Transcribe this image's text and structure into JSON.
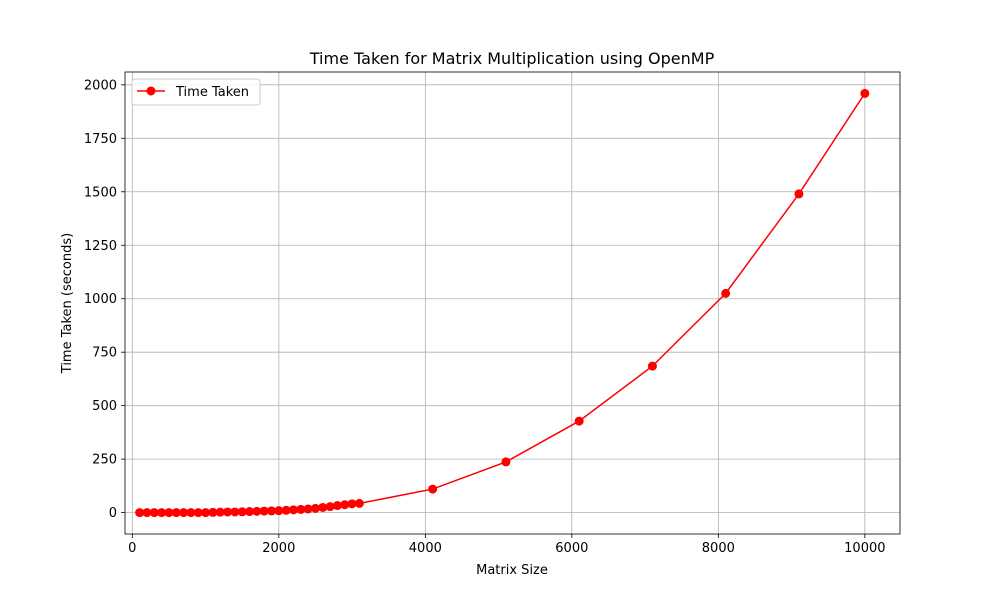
{
  "chart_data": {
    "type": "line",
    "title": "Time Taken for Matrix Multiplication using OpenMP",
    "xlabel": "Matrix Size",
    "ylabel": "Time Taken (seconds)",
    "xlim": [
      -100,
      10480
    ],
    "ylim": [
      -100,
      2060
    ],
    "xticks": [
      0,
      2000,
      4000,
      6000,
      8000,
      10000
    ],
    "yticks": [
      0,
      250,
      500,
      750,
      1000,
      1250,
      1500,
      1750,
      2000
    ],
    "grid": true,
    "legend_position": "top-left",
    "series": [
      {
        "name": "Time Taken",
        "color": "#ff0000",
        "marker": "circle",
        "x": [
          100,
          200,
          300,
          400,
          500,
          600,
          700,
          800,
          900,
          1000,
          1100,
          1200,
          1300,
          1400,
          1500,
          1600,
          1700,
          1800,
          1900,
          2000,
          2100,
          2200,
          2300,
          2400,
          2500,
          2600,
          2700,
          2800,
          2900,
          3000,
          3100,
          4100,
          5100,
          6100,
          7100,
          8100,
          9100,
          10000
        ],
        "y": [
          0,
          0,
          0,
          0,
          0,
          0,
          0,
          0,
          0,
          0,
          1,
          2,
          3,
          3,
          4,
          5,
          6,
          7,
          8,
          9,
          11,
          13,
          15,
          17,
          20,
          24,
          28,
          33,
          37,
          41,
          43,
          110,
          237,
          428,
          685,
          1025,
          1490,
          1960
        ]
      }
    ]
  }
}
